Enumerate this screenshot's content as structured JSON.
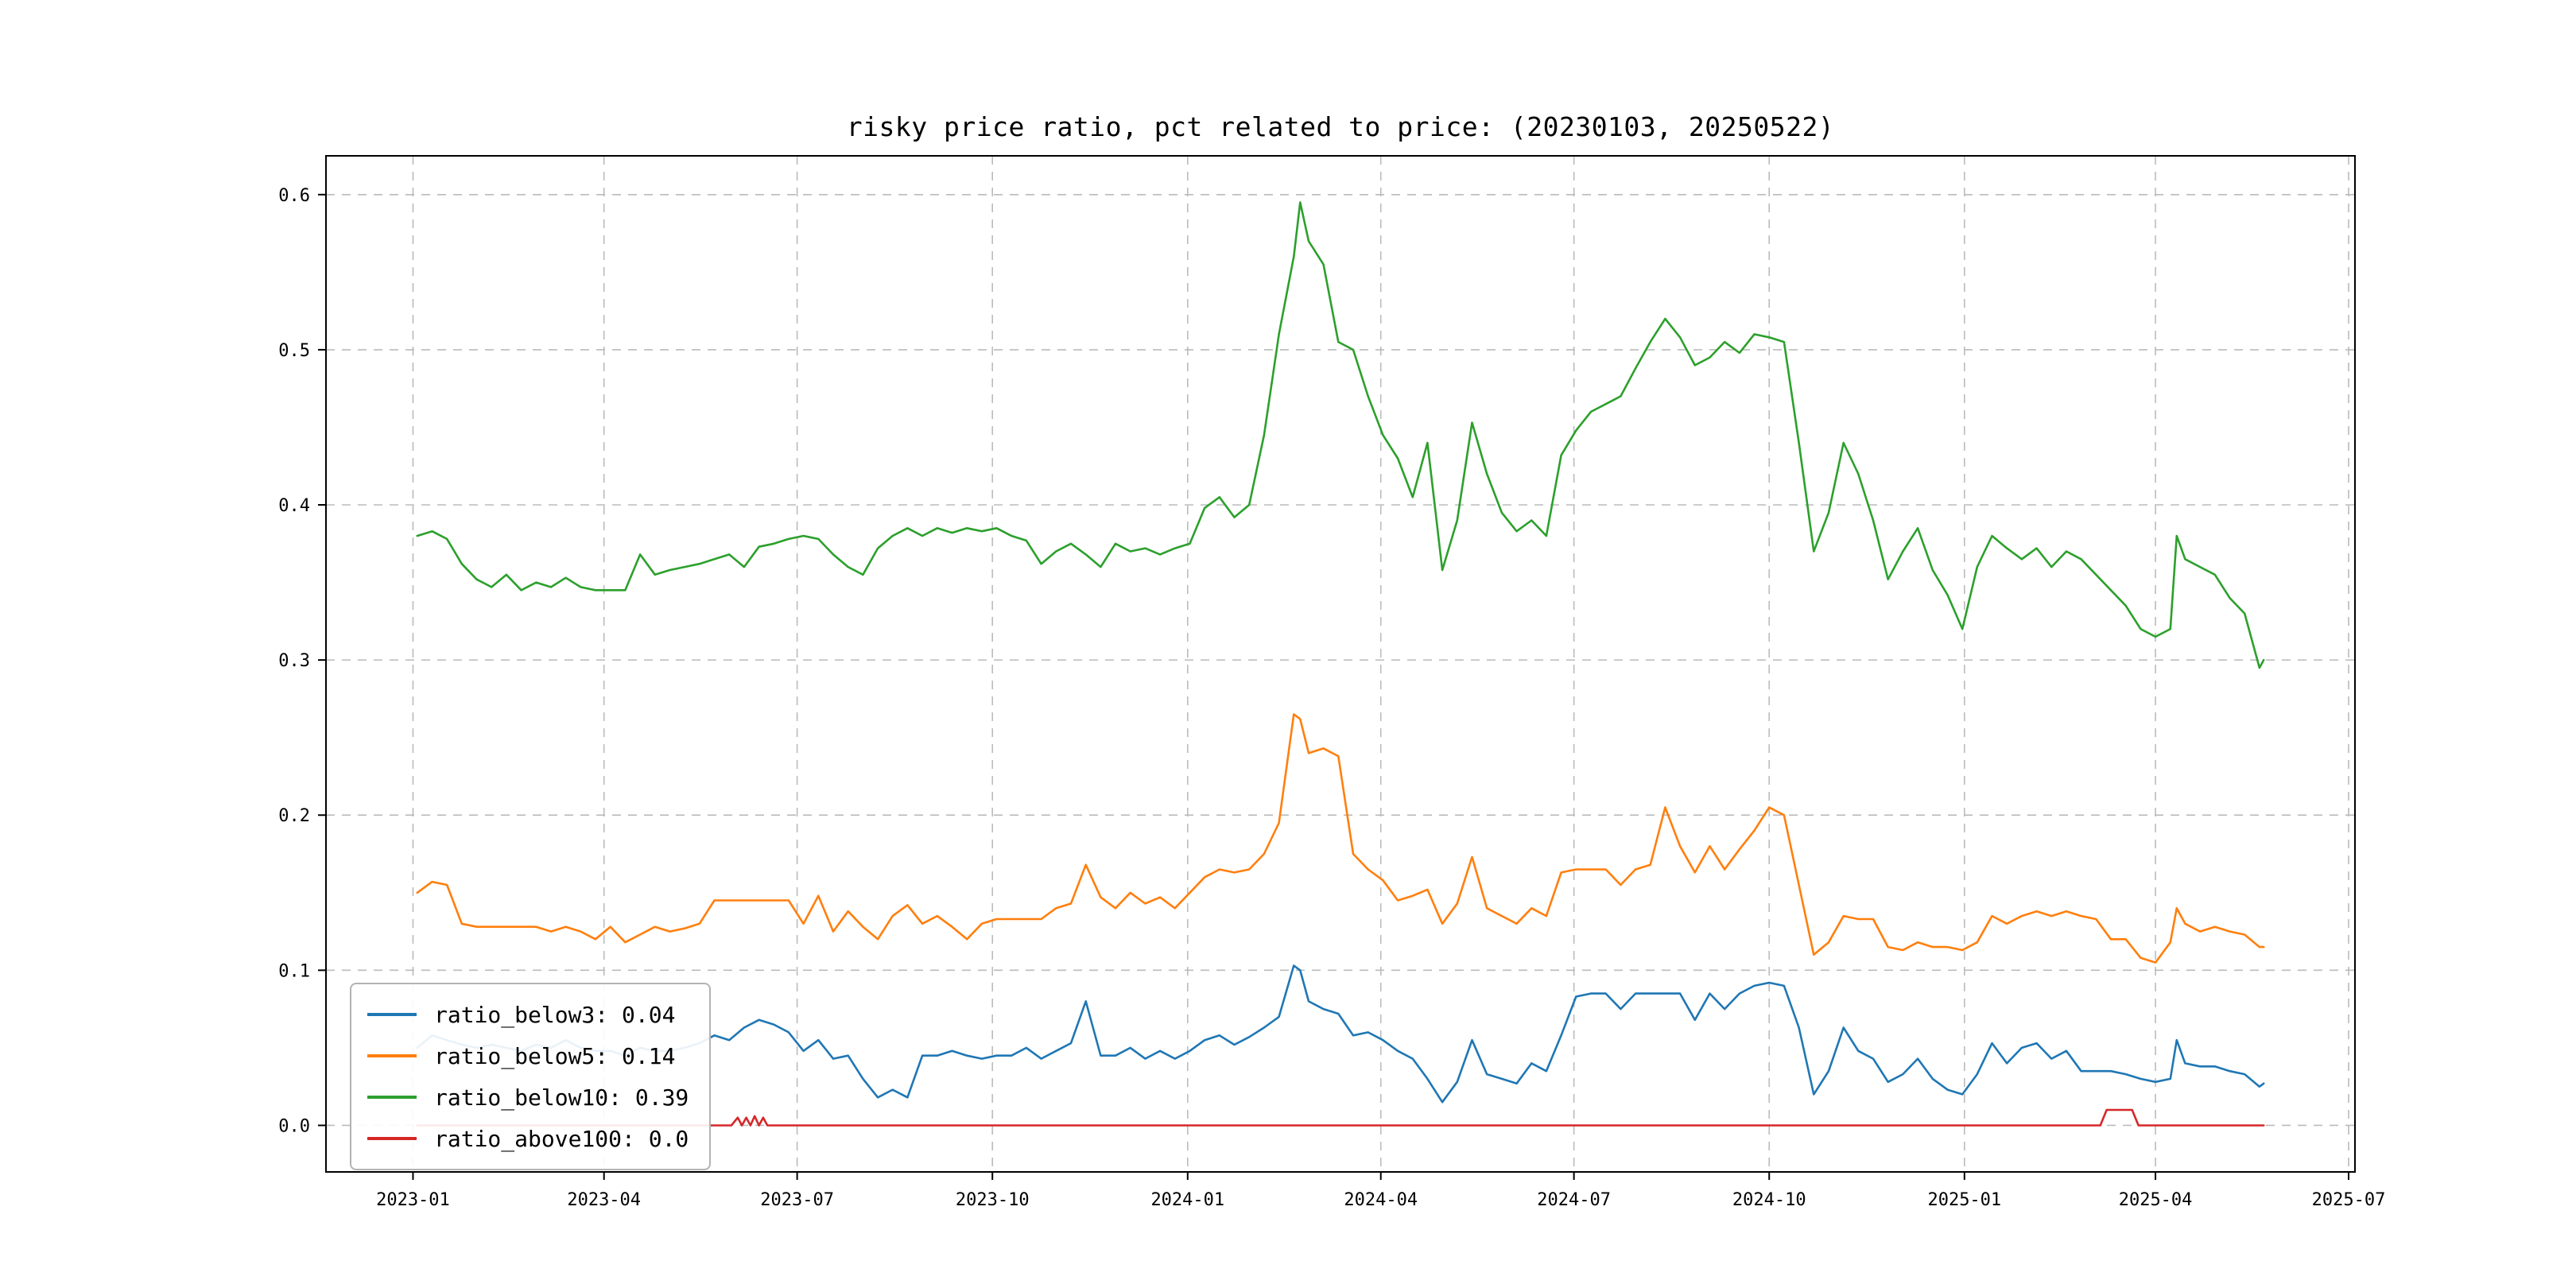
{
  "figure": {
    "background": "#ffffff"
  },
  "chart_data": {
    "type": "line",
    "title": "risky price ratio, pct related to price: (20230103, 20250522)",
    "xlabel": "",
    "ylabel": "",
    "x_unit": "days since 2023-01-01",
    "xlim": [
      -41,
      915
    ],
    "ylim": [
      -0.03,
      0.625
    ],
    "grid": "dashed",
    "legend_position": "lower left",
    "x_ticks": [
      {
        "pos": 0,
        "label": "2023-01"
      },
      {
        "pos": 90,
        "label": "2023-04"
      },
      {
        "pos": 181,
        "label": "2023-07"
      },
      {
        "pos": 273,
        "label": "2023-10"
      },
      {
        "pos": 365,
        "label": "2024-01"
      },
      {
        "pos": 456,
        "label": "2024-04"
      },
      {
        "pos": 547,
        "label": "2024-07"
      },
      {
        "pos": 639,
        "label": "2024-10"
      },
      {
        "pos": 731,
        "label": "2025-01"
      },
      {
        "pos": 821,
        "label": "2025-04"
      },
      {
        "pos": 912,
        "label": "2025-07"
      }
    ],
    "y_ticks": [
      0.0,
      0.1,
      0.2,
      0.3,
      0.4,
      0.5,
      0.6
    ],
    "series": [
      {
        "name": "ratio_below3: 0.04",
        "color": "#1f77b4",
        "x": [
          2,
          9,
          16,
          23,
          30,
          37,
          44,
          51,
          58,
          65,
          72,
          79,
          86,
          93,
          100,
          107,
          114,
          121,
          128,
          135,
          142,
          149,
          156,
          163,
          170,
          177,
          184,
          191,
          198,
          205,
          212,
          219,
          226,
          233,
          240,
          247,
          254,
          261,
          268,
          275,
          282,
          289,
          296,
          303,
          310,
          317,
          324,
          331,
          338,
          345,
          352,
          359,
          366,
          373,
          380,
          387,
          394,
          401,
          408,
          415,
          418,
          422,
          429,
          436,
          443,
          450,
          457,
          464,
          471,
          478,
          485,
          492,
          499,
          506,
          513,
          520,
          527,
          534,
          541,
          548,
          555,
          562,
          569,
          576,
          583,
          590,
          597,
          604,
          611,
          618,
          625,
          632,
          639,
          646,
          653,
          660,
          667,
          674,
          681,
          688,
          695,
          702,
          709,
          716,
          723,
          730,
          737,
          744,
          751,
          758,
          765,
          772,
          779,
          786,
          793,
          800,
          807,
          814,
          821,
          828,
          831,
          835,
          842,
          849,
          856,
          863,
          870,
          872
        ],
        "y": [
          0.05,
          0.058,
          0.055,
          0.052,
          0.05,
          0.052,
          0.05,
          0.048,
          0.052,
          0.05,
          0.055,
          0.05,
          0.048,
          0.048,
          0.045,
          0.05,
          0.048,
          0.048,
          0.05,
          0.053,
          0.058,
          0.055,
          0.063,
          0.068,
          0.065,
          0.06,
          0.048,
          0.055,
          0.043,
          0.045,
          0.03,
          0.018,
          0.023,
          0.018,
          0.045,
          0.045,
          0.048,
          0.045,
          0.043,
          0.045,
          0.045,
          0.05,
          0.043,
          0.048,
          0.053,
          0.08,
          0.045,
          0.045,
          0.05,
          0.043,
          0.048,
          0.043,
          0.048,
          0.055,
          0.058,
          0.052,
          0.057,
          0.063,
          0.07,
          0.103,
          0.1,
          0.08,
          0.075,
          0.072,
          0.058,
          0.06,
          0.055,
          0.048,
          0.043,
          0.03,
          0.015,
          0.028,
          0.055,
          0.033,
          0.03,
          0.027,
          0.04,
          0.035,
          0.058,
          0.083,
          0.085,
          0.085,
          0.075,
          0.085,
          0.085,
          0.085,
          0.085,
          0.068,
          0.085,
          0.075,
          0.085,
          0.09,
          0.092,
          0.09,
          0.063,
          0.02,
          0.035,
          0.063,
          0.048,
          0.043,
          0.028,
          0.033,
          0.043,
          0.03,
          0.023,
          0.02,
          0.033,
          0.053,
          0.04,
          0.05,
          0.053,
          0.043,
          0.048,
          0.035,
          0.035,
          0.035,
          0.033,
          0.03,
          0.028,
          0.03,
          0.055,
          0.04,
          0.038,
          0.038,
          0.035,
          0.033,
          0.025,
          0.027
        ]
      },
      {
        "name": "ratio_below5: 0.14",
        "color": "#ff7f0e",
        "x": [
          2,
          9,
          16,
          23,
          30,
          37,
          44,
          51,
          58,
          65,
          72,
          79,
          86,
          93,
          100,
          107,
          114,
          121,
          128,
          135,
          142,
          149,
          156,
          163,
          170,
          177,
          184,
          191,
          198,
          205,
          212,
          219,
          226,
          233,
          240,
          247,
          254,
          261,
          268,
          275,
          282,
          289,
          296,
          303,
          310,
          317,
          324,
          331,
          338,
          345,
          352,
          359,
          366,
          373,
          380,
          387,
          394,
          401,
          408,
          415,
          418,
          422,
          429,
          436,
          443,
          450,
          457,
          464,
          471,
          478,
          485,
          492,
          499,
          506,
          513,
          520,
          527,
          534,
          541,
          548,
          555,
          562,
          569,
          576,
          583,
          590,
          597,
          604,
          611,
          618,
          625,
          632,
          639,
          646,
          653,
          660,
          667,
          674,
          681,
          688,
          695,
          702,
          709,
          716,
          723,
          730,
          737,
          744,
          751,
          758,
          765,
          772,
          779,
          786,
          793,
          800,
          807,
          814,
          821,
          828,
          831,
          835,
          842,
          849,
          856,
          863,
          870,
          872
        ],
        "y": [
          0.15,
          0.157,
          0.155,
          0.13,
          0.128,
          0.128,
          0.128,
          0.128,
          0.128,
          0.125,
          0.128,
          0.125,
          0.12,
          0.128,
          0.118,
          0.123,
          0.128,
          0.125,
          0.127,
          0.13,
          0.145,
          0.145,
          0.145,
          0.145,
          0.145,
          0.145,
          0.13,
          0.148,
          0.125,
          0.138,
          0.128,
          0.12,
          0.135,
          0.142,
          0.13,
          0.135,
          0.128,
          0.12,
          0.13,
          0.133,
          0.133,
          0.133,
          0.133,
          0.14,
          0.143,
          0.168,
          0.147,
          0.14,
          0.15,
          0.143,
          0.147,
          0.14,
          0.15,
          0.16,
          0.165,
          0.163,
          0.165,
          0.175,
          0.195,
          0.265,
          0.262,
          0.24,
          0.243,
          0.238,
          0.175,
          0.165,
          0.158,
          0.145,
          0.148,
          0.152,
          0.13,
          0.143,
          0.173,
          0.14,
          0.135,
          0.13,
          0.14,
          0.135,
          0.163,
          0.165,
          0.165,
          0.165,
          0.155,
          0.165,
          0.168,
          0.205,
          0.18,
          0.163,
          0.18,
          0.165,
          0.178,
          0.19,
          0.205,
          0.2,
          0.155,
          0.11,
          0.118,
          0.135,
          0.133,
          0.133,
          0.115,
          0.113,
          0.118,
          0.115,
          0.115,
          0.113,
          0.118,
          0.135,
          0.13,
          0.135,
          0.138,
          0.135,
          0.138,
          0.135,
          0.133,
          0.12,
          0.12,
          0.108,
          0.105,
          0.118,
          0.14,
          0.13,
          0.125,
          0.128,
          0.125,
          0.123,
          0.115,
          0.115
        ]
      },
      {
        "name": "ratio_below10: 0.39",
        "color": "#2ca02c",
        "x": [
          2,
          9,
          16,
          23,
          30,
          37,
          44,
          51,
          58,
          65,
          72,
          79,
          86,
          93,
          100,
          107,
          114,
          121,
          128,
          135,
          142,
          149,
          156,
          163,
          170,
          177,
          184,
          191,
          198,
          205,
          212,
          219,
          226,
          233,
          240,
          247,
          254,
          261,
          268,
          275,
          282,
          289,
          296,
          303,
          310,
          317,
          324,
          331,
          338,
          345,
          352,
          359,
          366,
          373,
          380,
          387,
          394,
          401,
          408,
          415,
          418,
          422,
          429,
          436,
          443,
          450,
          457,
          464,
          471,
          478,
          485,
          492,
          499,
          506,
          513,
          520,
          527,
          534,
          541,
          548,
          555,
          562,
          569,
          576,
          583,
          590,
          597,
          604,
          611,
          618,
          625,
          632,
          639,
          646,
          653,
          660,
          667,
          674,
          681,
          688,
          695,
          702,
          709,
          716,
          723,
          730,
          737,
          744,
          751,
          758,
          765,
          772,
          779,
          786,
          793,
          800,
          807,
          814,
          821,
          828,
          831,
          835,
          842,
          849,
          856,
          863,
          870,
          872
        ],
        "y": [
          0.38,
          0.383,
          0.378,
          0.362,
          0.352,
          0.347,
          0.355,
          0.345,
          0.35,
          0.347,
          0.353,
          0.347,
          0.345,
          0.345,
          0.345,
          0.368,
          0.355,
          0.358,
          0.36,
          0.362,
          0.365,
          0.368,
          0.36,
          0.373,
          0.375,
          0.378,
          0.38,
          0.378,
          0.368,
          0.36,
          0.355,
          0.372,
          0.38,
          0.385,
          0.38,
          0.385,
          0.382,
          0.385,
          0.383,
          0.385,
          0.38,
          0.377,
          0.362,
          0.37,
          0.375,
          0.368,
          0.36,
          0.375,
          0.37,
          0.372,
          0.368,
          0.372,
          0.375,
          0.398,
          0.405,
          0.392,
          0.4,
          0.445,
          0.51,
          0.56,
          0.595,
          0.57,
          0.555,
          0.505,
          0.5,
          0.47,
          0.445,
          0.43,
          0.405,
          0.44,
          0.358,
          0.39,
          0.453,
          0.42,
          0.395,
          0.383,
          0.39,
          0.38,
          0.432,
          0.448,
          0.46,
          0.465,
          0.47,
          0.488,
          0.505,
          0.52,
          0.508,
          0.49,
          0.495,
          0.505,
          0.498,
          0.51,
          0.508,
          0.505,
          0.44,
          0.37,
          0.395,
          0.44,
          0.42,
          0.39,
          0.352,
          0.37,
          0.385,
          0.358,
          0.342,
          0.32,
          0.36,
          0.38,
          0.372,
          0.365,
          0.372,
          0.36,
          0.37,
          0.365,
          0.355,
          0.345,
          0.335,
          0.32,
          0.315,
          0.32,
          0.38,
          0.365,
          0.36,
          0.355,
          0.34,
          0.33,
          0.295,
          0.3
        ]
      },
      {
        "name": "ratio_above100: 0.0",
        "color": "#d62728",
        "x": [
          2,
          150,
          153,
          155,
          157,
          159,
          161,
          163,
          165,
          167,
          170,
          795,
          798,
          810,
          813,
          872
        ],
        "y": [
          0.0,
          0.0,
          0.005,
          0.0,
          0.005,
          0.0,
          0.006,
          0.0,
          0.005,
          0.0,
          0.0,
          0.0,
          0.01,
          0.01,
          0.0,
          0.0
        ]
      }
    ]
  }
}
